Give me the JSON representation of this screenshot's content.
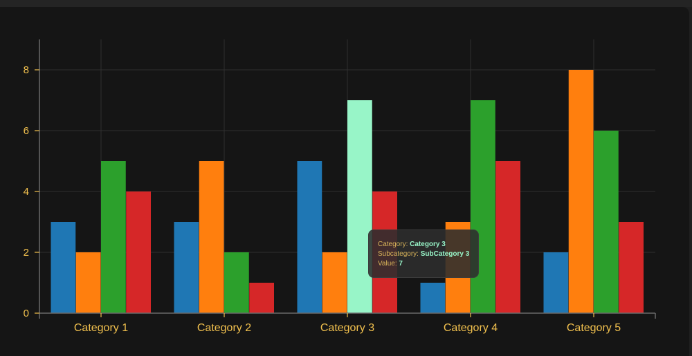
{
  "chart_data": {
    "type": "bar",
    "categories": [
      "Category 1",
      "Category 2",
      "Category 3",
      "Category 4",
      "Category 5"
    ],
    "series": [
      {
        "values": [
          3,
          3,
          5,
          1,
          2
        ],
        "color": "#1f77b4"
      },
      {
        "values": [
          2,
          5,
          2,
          3,
          8
        ],
        "color": "#ff7f0e"
      },
      {
        "values": [
          5,
          2,
          7,
          7,
          6
        ],
        "color": "#2ca02c"
      },
      {
        "values": [
          4,
          1,
          4,
          5,
          3
        ],
        "color": "#d62728"
      }
    ],
    "highlight": {
      "category_index": 2,
      "series_index": 2,
      "color": "#98f5c8"
    },
    "ylim": [
      0,
      9
    ],
    "yticks": [
      0,
      2,
      4,
      6,
      8
    ],
    "grid": true,
    "axis_color": "#f2c14e"
  },
  "tooltip": {
    "category_label": "Category:",
    "category_value": "Category 3",
    "subcategory_label": "Subcategory:",
    "subcategory_value": "SubCategory 3",
    "value_label": "Value:",
    "value_value": "7"
  }
}
